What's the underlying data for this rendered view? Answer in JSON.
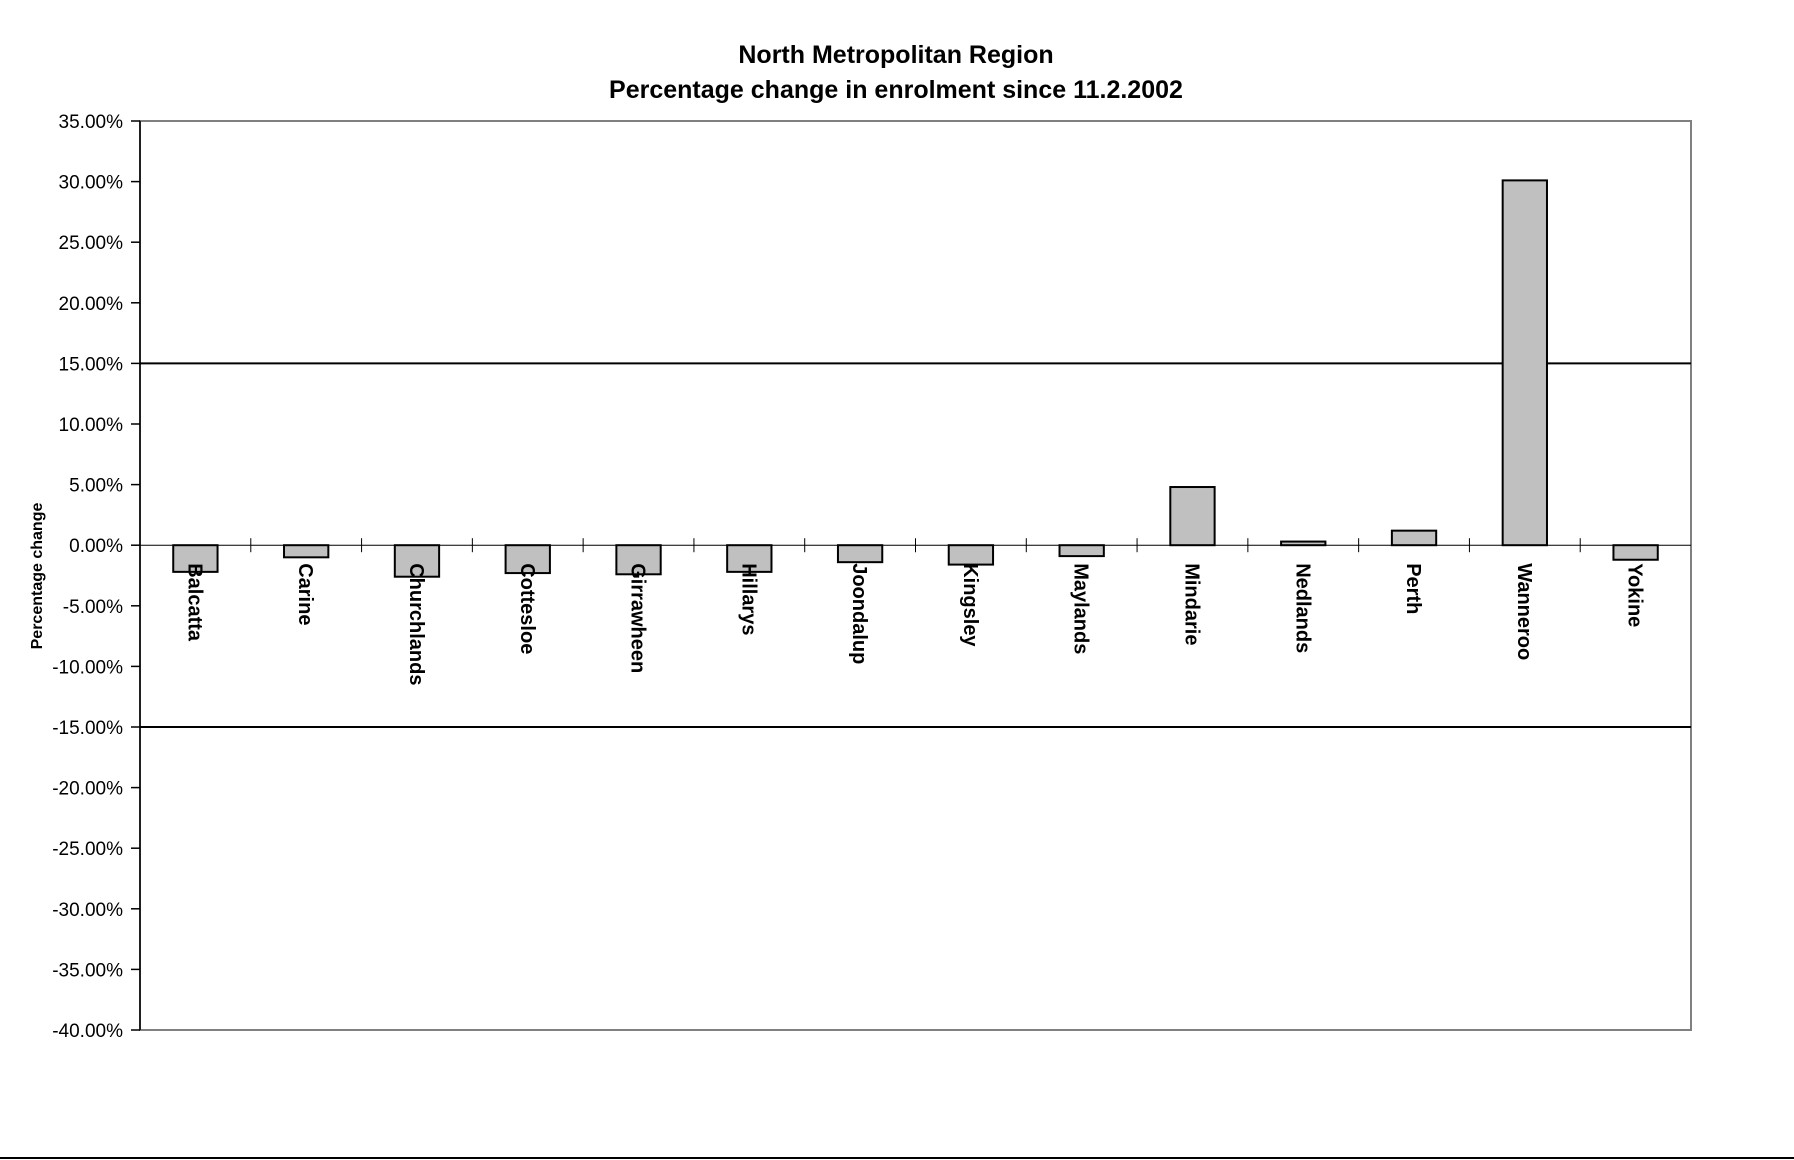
{
  "chart_data": {
    "type": "bar",
    "title": "North Metropolitan Region",
    "subtitle": "Percentage change in enrolment since 11.2.2002",
    "xlabel": "",
    "ylabel": "Percentage change",
    "ylim": [
      -40,
      35
    ],
    "ytick_step": 5,
    "ytick_labels": [
      "35.00%",
      "30.00%",
      "25.00%",
      "20.00%",
      "15.00%",
      "10.00%",
      "5.00%",
      "0.00%",
      "-5.00%",
      "-10.00%",
      "-15.00%",
      "-20.00%",
      "-25.00%",
      "-30.00%",
      "-35.00%",
      "-40.00%"
    ],
    "reference_lines": [
      15,
      -15
    ],
    "grid": false,
    "legend": "none",
    "bar_color": "#c0c0c0",
    "categories": [
      "Balcatta",
      "Carine",
      "Churchlands",
      "Cottesloe",
      "Girrawheen",
      "Hillarys",
      "Joondalup",
      "Kingsley",
      "Maylands",
      "Mindarie",
      "Nedlands",
      "Perth",
      "Wanneroo",
      "Yokine"
    ],
    "values": [
      -2.2,
      -1.0,
      -2.6,
      -2.3,
      -2.4,
      -2.2,
      -1.4,
      -1.6,
      -0.9,
      4.8,
      0.3,
      1.2,
      30.1,
      -1.2
    ]
  }
}
